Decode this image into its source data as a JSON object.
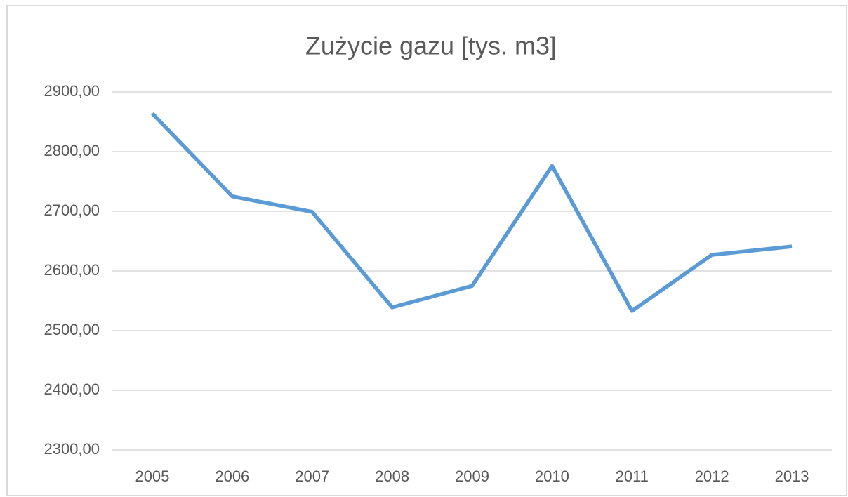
{
  "chart_data": {
    "type": "line",
    "title": "Zużycie gazu [tys. m3]",
    "categories": [
      "2005",
      "2006",
      "2007",
      "2008",
      "2009",
      "2010",
      "2011",
      "2012",
      "2013"
    ],
    "series": [
      {
        "name": "Zużycie gazu",
        "color": "#5b9bd5",
        "values": [
          2864,
          2725,
          2699,
          2539,
          2575,
          2776,
          2533,
          2627,
          2641
        ]
      }
    ],
    "ylim": [
      2300,
      2900
    ],
    "yticks": [
      {
        "value": 2300,
        "label": "2300,00"
      },
      {
        "value": 2400,
        "label": "2400,00"
      },
      {
        "value": 2500,
        "label": "2500,00"
      },
      {
        "value": 2600,
        "label": "2600,00"
      },
      {
        "value": 2700,
        "label": "2700,00"
      },
      {
        "value": 2800,
        "label": "2800,00"
      },
      {
        "value": 2900,
        "label": "2900,00"
      }
    ],
    "grid": true
  }
}
